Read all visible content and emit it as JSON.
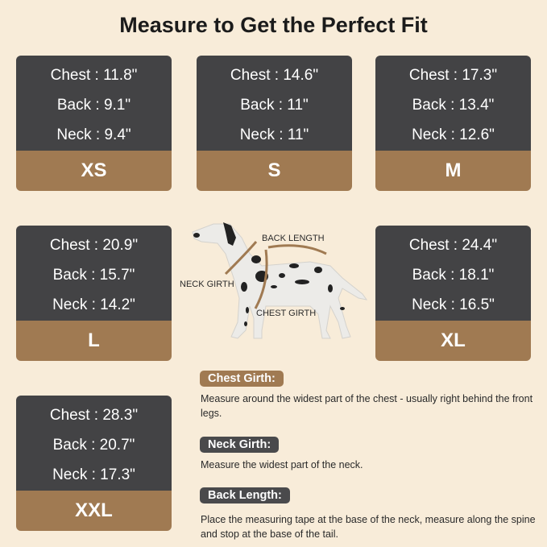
{
  "title": "Measure to Get the Perfect Fit",
  "sizes": [
    {
      "size": "XS",
      "chest": "Chest : 11.8\"",
      "back": "Back : 9.1\"",
      "neck": "Neck : 9.4\""
    },
    {
      "size": "S",
      "chest": "Chest : 14.6\"",
      "back": "Back : 11\"",
      "neck": "Neck : 11\""
    },
    {
      "size": "M",
      "chest": "Chest : 17.3\"",
      "back": "Back : 13.4\"",
      "neck": "Neck : 12.6\""
    },
    {
      "size": "L",
      "chest": "Chest : 20.9\"",
      "back": "Back : 15.7\"",
      "neck": "Neck : 14.2\""
    },
    {
      "size": "XL",
      "chest": "Chest : 24.4\"",
      "back": "Back : 18.1\"",
      "neck": "Neck : 16.5\""
    },
    {
      "size": "XXL",
      "chest": "Chest : 28.3\"",
      "back": "Back : 20.7\"",
      "neck": "Neck : 17.3\""
    }
  ],
  "diagram": {
    "back_length": "BACK LENGTH",
    "neck_girth": "NECK GIRTH",
    "chest_girth": "CHEST GIRTH"
  },
  "instructions": [
    {
      "label": "Chest Girth:",
      "text": "Measure around the widest part of the chest - usually right behind the front legs.",
      "color": "#a07a52"
    },
    {
      "label": "Neck Girth:",
      "text": "Measure the widest part of the neck.",
      "color": "#4a4a4c"
    },
    {
      "label": "Back Length:",
      "text": "Place the measuring tape at the base of the neck, measure along the spine and stop at the base of the tail.",
      "color": "#4a4a4c"
    }
  ],
  "colors": {
    "background": "#f8ecd9",
    "card_dark": "#434345",
    "card_brown": "#a07a52"
  }
}
